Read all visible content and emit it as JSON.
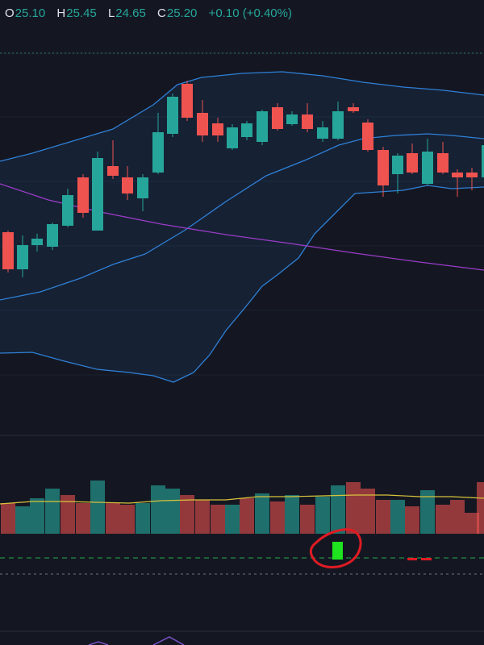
{
  "ohlc": {
    "o_label": "O",
    "o_value": "25.10",
    "h_label": "H",
    "h_value": "25.45",
    "l_label": "L",
    "l_value": "24.65",
    "c_label": "C",
    "c_value": "25.20",
    "change": "+0.10 (+0.40%)"
  },
  "colors": {
    "background": "#141722",
    "bull": "#26a69a",
    "bear": "#ef5350",
    "bollinger": "#2f80d6",
    "moving_average": "#9b3cc7",
    "volume_ma": "#d8c33a",
    "annotation": "#e01b24",
    "signal_box": "#1fe31f",
    "signal_dash": "#e01b24",
    "dashed_line": "#29a84a"
  },
  "icons": {
    "annotation": "red-circle-annotation-icon"
  }
}
